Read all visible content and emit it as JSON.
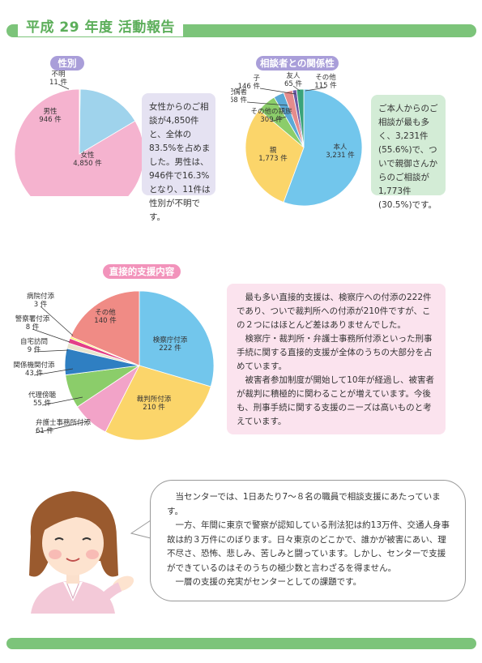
{
  "header": {
    "title": "平成 29 年度 活動報告"
  },
  "gender": {
    "label": "性別",
    "description": "女性からのご相談が4,850件と、全体の83.5%を占めました。男性は、946件で16.3%となり、11件は性別が不明です。",
    "slices": [
      {
        "name": "女性",
        "value": 4850,
        "value_label": "4,850 件",
        "color": "#f5b3cf"
      },
      {
        "name": "男性",
        "value": 946,
        "value_label": "946 件",
        "color": "#9fd3ec"
      },
      {
        "name": "不明",
        "value": 11,
        "value_label": "11 件",
        "color": "#f3e08a"
      }
    ]
  },
  "relation": {
    "label": "相談者との関係性",
    "description": "ご本人からのご相談が最も多く、3,231件(55.6%)で、ついで親御さんからのご相談が1,773件(30.5%)です。",
    "slices": [
      {
        "name": "本人",
        "value": 3231,
        "value_label": "3,231 件",
        "color": "#72c6ec"
      },
      {
        "name": "親",
        "value": 1773,
        "value_label": "1,773 件",
        "color": "#fbd56a"
      },
      {
        "name": "その他の親族",
        "value": 309,
        "value_label": "309 件",
        "color": "#8bcd6a"
      },
      {
        "name": "配偶者",
        "value": 168,
        "value_label": "168 件",
        "color": "#5aa9d6"
      },
      {
        "name": "子",
        "value": 146,
        "value_label": "146 件",
        "color": "#e58c8c"
      },
      {
        "name": "友人",
        "value": 65,
        "value_label": "65 件",
        "color": "#6b5aa6"
      },
      {
        "name": "その他",
        "value": 115,
        "value_label": "115 件",
        "color": "#3aa37a"
      }
    ]
  },
  "support": {
    "label": "直接的支援内容",
    "description": [
      "最も多い直接的支援は、検察庁への付添の222件であり、ついで裁判所への付添が210件ですが、この２つにはほとんど差はありませんでした。",
      "検察庁・裁判所・弁護士事務所付添といった刑事手続に関する直接的支援が全体のうちの大部分を占めています。",
      "被害者参加制度が開始して10年が経過し、被害者が裁判に積極的に関わることが増えています。今後も、刑事手続に関する支援のニーズは高いものと考えています。"
    ],
    "slices": [
      {
        "name": "検察庁付添",
        "value": 222,
        "value_label": "222 件",
        "color": "#72c6ec"
      },
      {
        "name": "裁判所付添",
        "value": 210,
        "value_label": "210 件",
        "color": "#fbd56a"
      },
      {
        "name": "弁護士事務所付添",
        "value": 61,
        "value_label": "61 件",
        "color": "#f2a3c8"
      },
      {
        "name": "代理傍聴",
        "value": 55,
        "value_label": "55 件",
        "color": "#8bcd6a"
      },
      {
        "name": "関係機関付添",
        "value": 43,
        "value_label": "43 件",
        "color": "#2f7fc2"
      },
      {
        "name": "自宅訪問",
        "value": 9,
        "value_label": "9 件",
        "color": "#e9e5cf"
      },
      {
        "name": "警察署付添",
        "value": 8,
        "value_label": "8 件",
        "color": "#e33f87"
      },
      {
        "name": "病院付添",
        "value": 3,
        "value_label": "3 件",
        "color": "#fff25a"
      },
      {
        "name": "その他",
        "value": 140,
        "value_label": "140 件",
        "color": "#f08b85"
      }
    ]
  },
  "message": {
    "paragraphs": [
      "当センターでは、1日あたり7～８名の職員で相談支援にあたっています。",
      "一方、年間に東京で警察が認知している刑法犯は約13万件、交通人身事故は約３万件にのぼります。日々東京のどこかで、誰かが被害にあい、理不尽さ、恐怖、悲しみ、苦しみと闘っています。しかし、センターで支援ができているのはそのうちの極少数と言わざるを得ません。",
      "一層の支援の充実がセンターとしての課題です。"
    ]
  },
  "colors": {
    "accent_green": "#7cc47a",
    "pill_purple": "#a99ed9",
    "pill_pink": "#f293bb"
  }
}
